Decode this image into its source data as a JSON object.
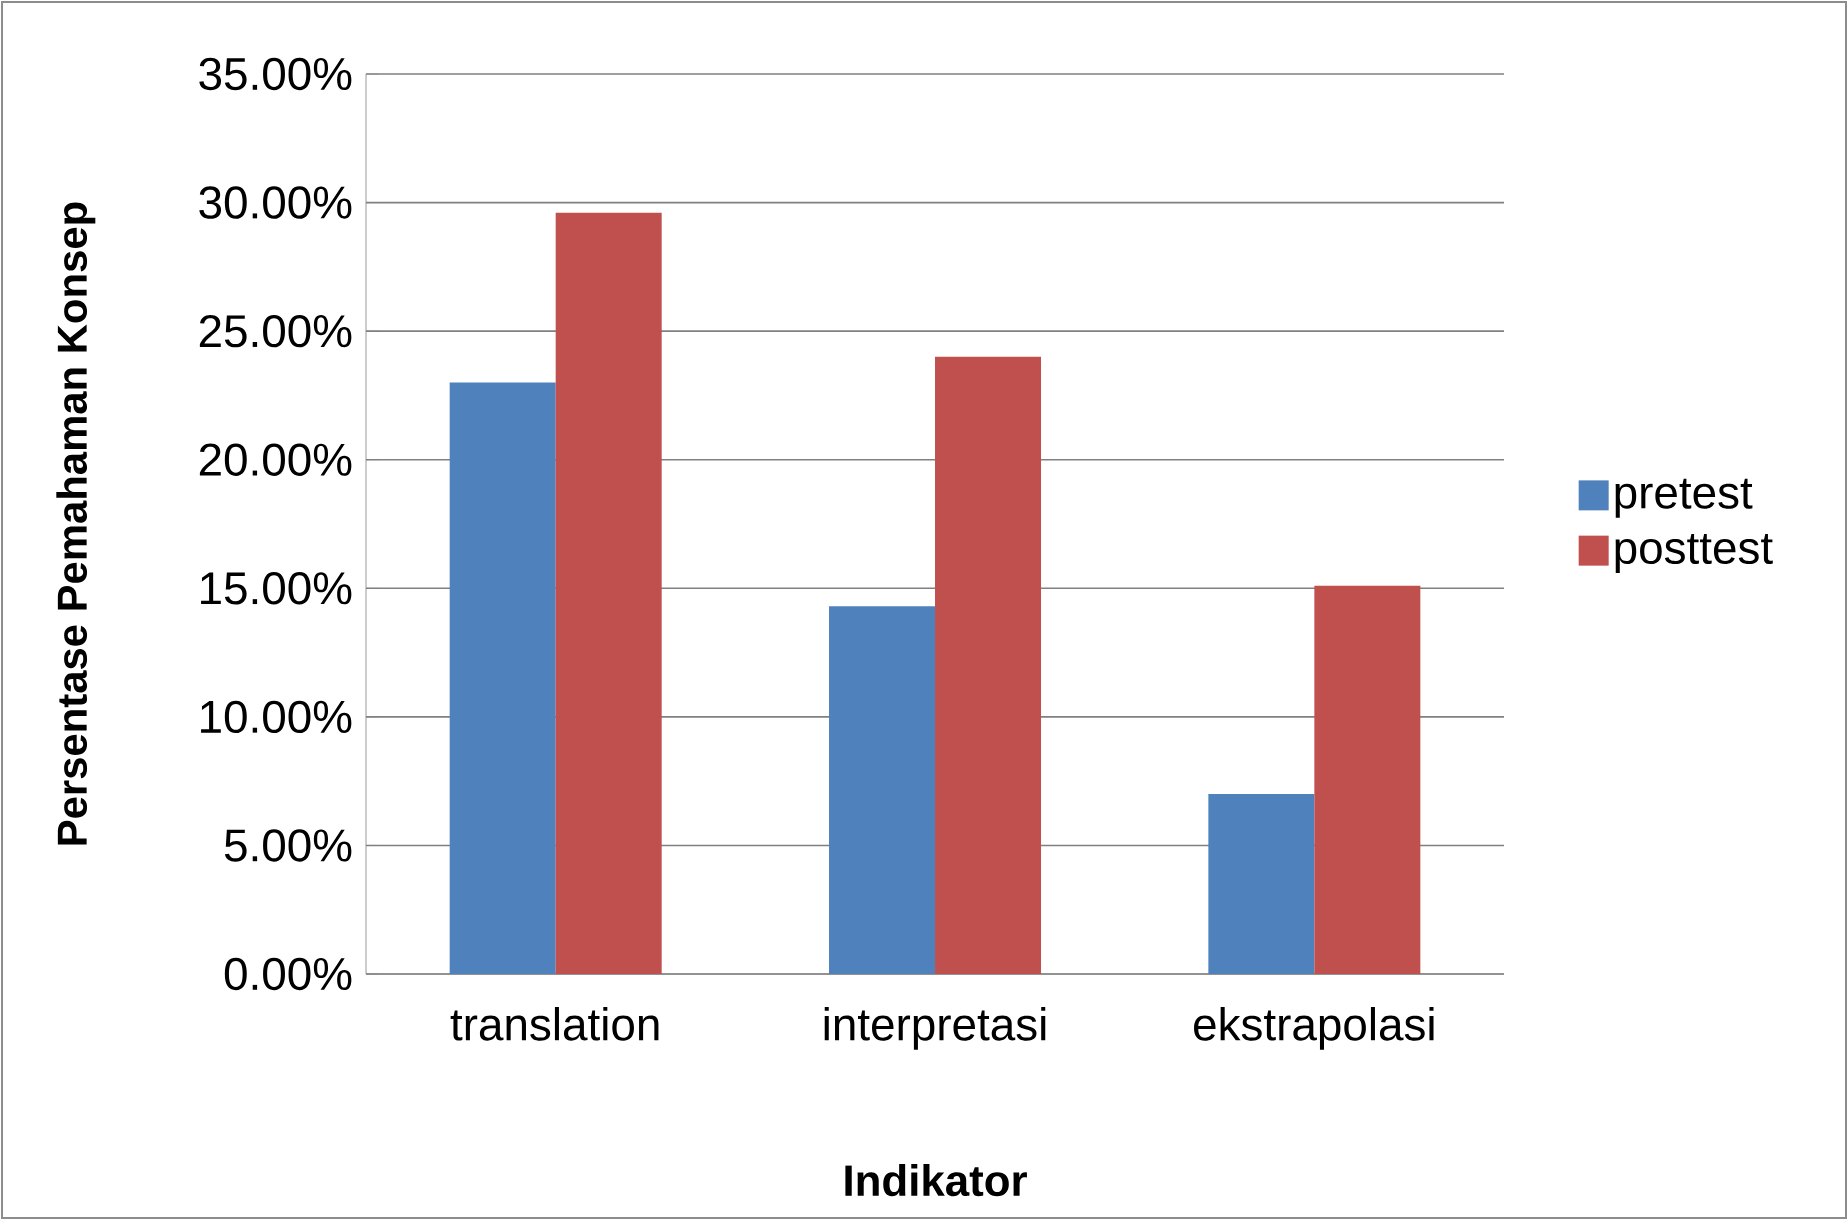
{
  "chart_data": {
    "type": "bar",
    "xlabel": "Indikator",
    "ylabel": "Persentase Pemahaman Konsep",
    "categories": [
      "translation",
      "interpretasi",
      "ekstrapolasi"
    ],
    "series": [
      {
        "name": "pretest",
        "color": "#4f81bd",
        "values": [
          23.0,
          14.3,
          7.0
        ]
      },
      {
        "name": "posttest",
        "color": "#c0504d",
        "values": [
          29.6,
          24.0,
          15.1
        ]
      }
    ],
    "ylim": [
      0,
      35
    ],
    "yticks": [
      {
        "value": 0,
        "label": "0.00%"
      },
      {
        "value": 5,
        "label": "5.00%"
      },
      {
        "value": 10,
        "label": "10.00%"
      },
      {
        "value": 15,
        "label": "15.00%"
      },
      {
        "value": 20,
        "label": "20.00%"
      },
      {
        "value": 25,
        "label": "25.00%"
      },
      {
        "value": 30,
        "label": "30.00%"
      },
      {
        "value": 35,
        "label": "35.00%"
      }
    ],
    "grid": "y",
    "legend": "right"
  }
}
